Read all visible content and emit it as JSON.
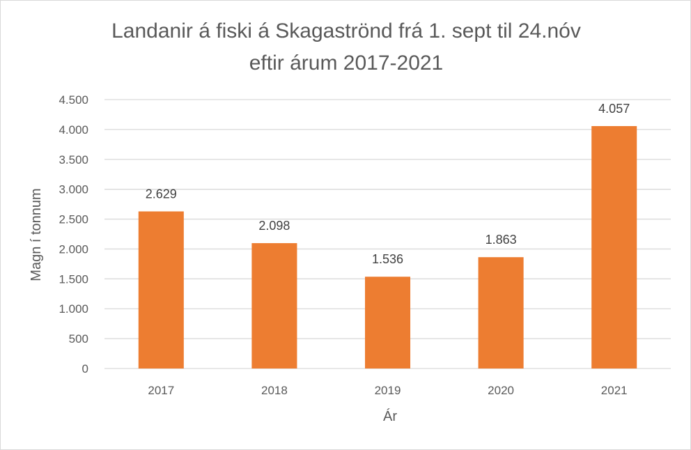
{
  "chart_data": {
    "type": "bar",
    "title_lines": [
      "Landanir á fiski á Skagaströnd frá 1. sept til 24.nóv",
      "eftir árum 2017-2021"
    ],
    "xlabel": "Ár",
    "ylabel": "Magn í tonnum",
    "categories": [
      "2017",
      "2018",
      "2019",
      "2020",
      "2021"
    ],
    "values": [
      2629,
      2098,
      1536,
      1863,
      4057
    ],
    "value_labels": [
      "2.629",
      "2.098",
      "1.536",
      "1.863",
      "4.057"
    ],
    "ylim": [
      0,
      4500
    ],
    "yticks": [
      0,
      500,
      1000,
      1500,
      2000,
      2500,
      3000,
      3500,
      4000,
      4500
    ],
    "ytick_labels": [
      "0",
      "500",
      "1.000",
      "1.500",
      "2.000",
      "2.500",
      "3.000",
      "3.500",
      "4.000",
      "4.500"
    ],
    "grid": true,
    "legend": "none",
    "bar_color": "#ED7D31",
    "grid_color": "#D9D9D9"
  }
}
